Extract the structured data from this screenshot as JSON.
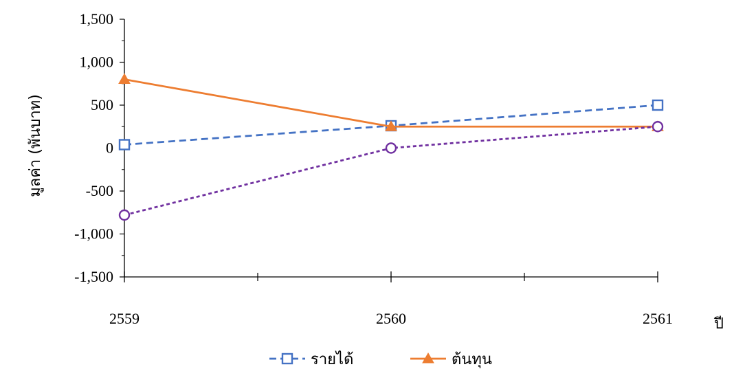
{
  "chart_data": {
    "type": "line",
    "title": "",
    "xlabel": "ปี",
    "ylabel": "มูลค่า (พันบาท)",
    "x": [
      "2559",
      "2560",
      "2561"
    ],
    "ylim": [
      -1500,
      1500
    ],
    "yticks": [
      1500,
      1000,
      500,
      0,
      -500,
      -1000,
      -1500
    ],
    "ytick_labels": [
      "1,500",
      "1,000",
      "500",
      "0",
      "-500",
      "-1,000",
      "-1,500"
    ],
    "grid": false,
    "legend_position": "bottom",
    "series": [
      {
        "name": "รายได้",
        "values": [
          40,
          260,
          500
        ],
        "color": "#4472C4",
        "line": "dashed",
        "marker": "square-open"
      },
      {
        "name": "ต้นทุน",
        "values": [
          800,
          250,
          250
        ],
        "color": "#ED7D31",
        "line": "solid",
        "marker": "triangle"
      },
      {
        "name": "",
        "values": [
          -780,
          0,
          250
        ],
        "color": "#7030A0",
        "line": "dotted",
        "marker": "circle-open"
      }
    ]
  }
}
